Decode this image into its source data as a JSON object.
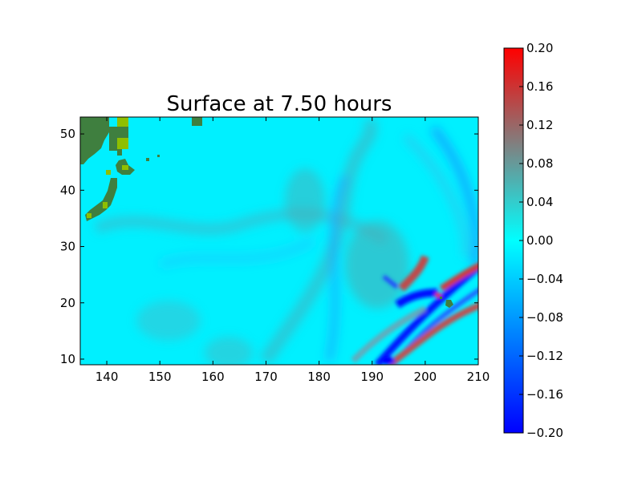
{
  "chart_data": {
    "type": "heatmap",
    "title": "Surface at 7.50 hours",
    "xlabel": "",
    "ylabel": "",
    "xlim": [
      135,
      210
    ],
    "ylim": [
      9,
      53
    ],
    "x_ticks": [
      140,
      150,
      160,
      170,
      180,
      190,
      200,
      210
    ],
    "y_ticks": [
      10,
      20,
      30,
      40,
      50
    ],
    "x_tick_labels": [
      "140",
      "150",
      "160",
      "170",
      "180",
      "190",
      "200",
      "210"
    ],
    "y_tick_labels": [
      "10",
      "20",
      "30",
      "40",
      "50"
    ],
    "grid": false,
    "colorbar": {
      "range": [
        -0.2,
        0.2
      ],
      "ticks": [
        0.2,
        0.16,
        0.12,
        0.08,
        0.04,
        0.0,
        -0.04,
        -0.08,
        -0.12,
        -0.16,
        -0.2
      ],
      "tick_labels": [
        "0.20",
        "0.16",
        "0.12",
        "0.08",
        "0.04",
        "0.00",
        "−0.04",
        "−0.08",
        "−0.12",
        "−0.16",
        "−0.20"
      ],
      "colors": [
        "#0000ff",
        "#00ffff",
        "#ff0000"
      ],
      "mid_color": "#808080"
    },
    "colors": {
      "background": "#00f0ff",
      "land": "#3f7f3f",
      "land_highlight": "#8fbf00"
    }
  }
}
